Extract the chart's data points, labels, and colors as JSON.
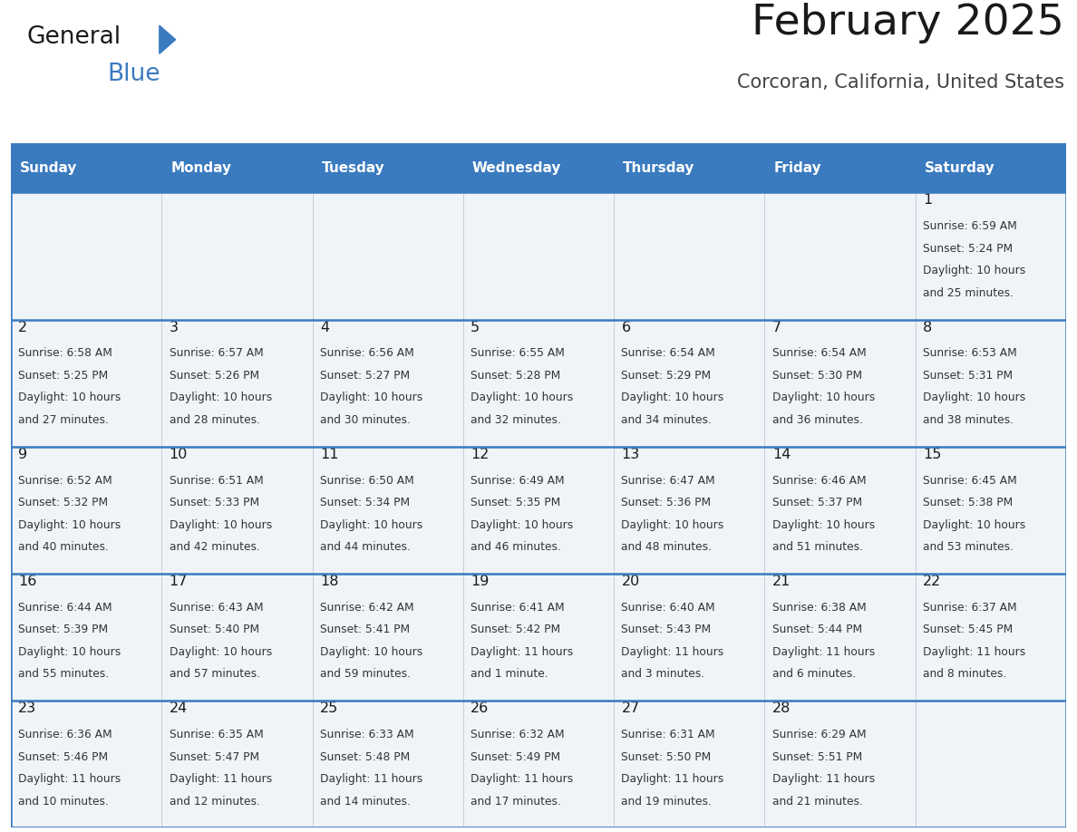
{
  "title": "February 2025",
  "subtitle": "Corcoran, California, United States",
  "header_bg": "#3a7abf",
  "header_text_color": "#ffffff",
  "cell_bg": "#f0f4f8",
  "row_line_color": "#3a7abf",
  "sep_line_color": "#aaaaaa",
  "day_headers": [
    "Sunday",
    "Monday",
    "Tuesday",
    "Wednesday",
    "Thursday",
    "Friday",
    "Saturday"
  ],
  "calendar_data": [
    [
      "",
      "",
      "",
      "",
      "",
      "",
      "1\nSunrise: 6:59 AM\nSunset: 5:24 PM\nDaylight: 10 hours\nand 25 minutes."
    ],
    [
      "2\nSunrise: 6:58 AM\nSunset: 5:25 PM\nDaylight: 10 hours\nand 27 minutes.",
      "3\nSunrise: 6:57 AM\nSunset: 5:26 PM\nDaylight: 10 hours\nand 28 minutes.",
      "4\nSunrise: 6:56 AM\nSunset: 5:27 PM\nDaylight: 10 hours\nand 30 minutes.",
      "5\nSunrise: 6:55 AM\nSunset: 5:28 PM\nDaylight: 10 hours\nand 32 minutes.",
      "6\nSunrise: 6:54 AM\nSunset: 5:29 PM\nDaylight: 10 hours\nand 34 minutes.",
      "7\nSunrise: 6:54 AM\nSunset: 5:30 PM\nDaylight: 10 hours\nand 36 minutes.",
      "8\nSunrise: 6:53 AM\nSunset: 5:31 PM\nDaylight: 10 hours\nand 38 minutes."
    ],
    [
      "9\nSunrise: 6:52 AM\nSunset: 5:32 PM\nDaylight: 10 hours\nand 40 minutes.",
      "10\nSunrise: 6:51 AM\nSunset: 5:33 PM\nDaylight: 10 hours\nand 42 minutes.",
      "11\nSunrise: 6:50 AM\nSunset: 5:34 PM\nDaylight: 10 hours\nand 44 minutes.",
      "12\nSunrise: 6:49 AM\nSunset: 5:35 PM\nDaylight: 10 hours\nand 46 minutes.",
      "13\nSunrise: 6:47 AM\nSunset: 5:36 PM\nDaylight: 10 hours\nand 48 minutes.",
      "14\nSunrise: 6:46 AM\nSunset: 5:37 PM\nDaylight: 10 hours\nand 51 minutes.",
      "15\nSunrise: 6:45 AM\nSunset: 5:38 PM\nDaylight: 10 hours\nand 53 minutes."
    ],
    [
      "16\nSunrise: 6:44 AM\nSunset: 5:39 PM\nDaylight: 10 hours\nand 55 minutes.",
      "17\nSunrise: 6:43 AM\nSunset: 5:40 PM\nDaylight: 10 hours\nand 57 minutes.",
      "18\nSunrise: 6:42 AM\nSunset: 5:41 PM\nDaylight: 10 hours\nand 59 minutes.",
      "19\nSunrise: 6:41 AM\nSunset: 5:42 PM\nDaylight: 11 hours\nand 1 minute.",
      "20\nSunrise: 6:40 AM\nSunset: 5:43 PM\nDaylight: 11 hours\nand 3 minutes.",
      "21\nSunrise: 6:38 AM\nSunset: 5:44 PM\nDaylight: 11 hours\nand 6 minutes.",
      "22\nSunrise: 6:37 AM\nSunset: 5:45 PM\nDaylight: 11 hours\nand 8 minutes."
    ],
    [
      "23\nSunrise: 6:36 AM\nSunset: 5:46 PM\nDaylight: 11 hours\nand 10 minutes.",
      "24\nSunrise: 6:35 AM\nSunset: 5:47 PM\nDaylight: 11 hours\nand 12 minutes.",
      "25\nSunrise: 6:33 AM\nSunset: 5:48 PM\nDaylight: 11 hours\nand 14 minutes.",
      "26\nSunrise: 6:32 AM\nSunset: 5:49 PM\nDaylight: 11 hours\nand 17 minutes.",
      "27\nSunrise: 6:31 AM\nSunset: 5:50 PM\nDaylight: 11 hours\nand 19 minutes.",
      "28\nSunrise: 6:29 AM\nSunset: 5:51 PM\nDaylight: 11 hours\nand 21 minutes.",
      ""
    ]
  ],
  "num_rows": 5,
  "num_cols": 7,
  "logo_color": "#3a7abf",
  "logo_text_color": "#1a1a1a",
  "fig_width": 11.88,
  "fig_height": 9.18,
  "dpi": 100
}
